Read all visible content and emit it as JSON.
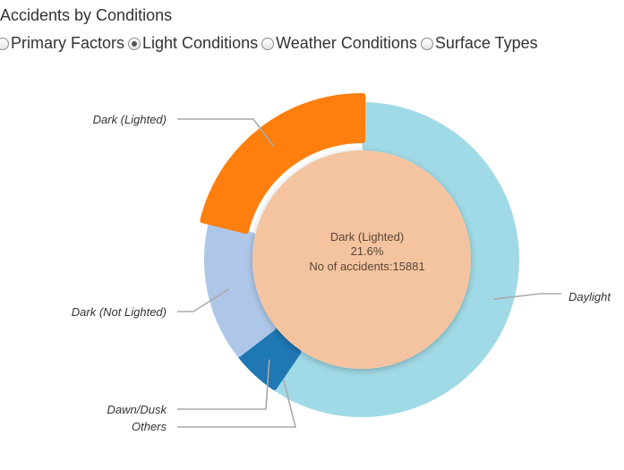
{
  "header": {
    "title": "Accidents by Conditions"
  },
  "filters": {
    "selected": "light-conditions",
    "options": [
      {
        "id": "primary-factors",
        "label": "Primary Factors"
      },
      {
        "id": "light-conditions",
        "label": "Light Conditions"
      },
      {
        "id": "weather-conditions",
        "label": "Weather Conditions"
      },
      {
        "id": "surface-types",
        "label": "Surface Types"
      }
    ]
  },
  "chart_data": {
    "type": "pie",
    "variant": "donut",
    "title": "Accidents by Conditions",
    "slices": [
      {
        "label": "Daylight",
        "percent": 58.7,
        "color": "#a0dae6"
      },
      {
        "label": "Others",
        "percent": 0.4,
        "color": "#a0dae6"
      },
      {
        "label": "Dawn/Dusk",
        "percent": 5.0,
        "color": "#1f77b4"
      },
      {
        "label": "Dark (Not Lighted)",
        "percent": 14.3,
        "color": "#aec7e8"
      },
      {
        "label": "Dark (Lighted)",
        "percent": 21.6,
        "color": "#ff7f0e"
      }
    ],
    "highlighted": {
      "label": "Dark (Lighted)",
      "percent_text": "21.6%",
      "count_text": "No of accidents:15881",
      "fill_color": "#f3c49f"
    }
  }
}
